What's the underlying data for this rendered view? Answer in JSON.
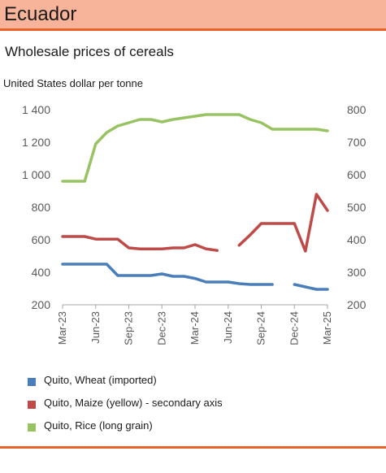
{
  "header": {
    "title": "Ecuador",
    "accent_color": "#e8632a",
    "banner_color": "#f8b49a"
  },
  "chart_data": {
    "type": "line",
    "title": "Wholesale prices of cereals",
    "unit_label": "United States dollar per tonne",
    "x": [
      "Mar-23",
      "Apr-23",
      "May-23",
      "Jun-23",
      "Jul-23",
      "Aug-23",
      "Sep-23",
      "Oct-23",
      "Nov-23",
      "Dec-23",
      "Jan-24",
      "Feb-24",
      "Mar-24",
      "Apr-24",
      "May-24",
      "Jun-24",
      "Jul-24",
      "Aug-24",
      "Sep-24",
      "Oct-24",
      "Nov-24",
      "Dec-24",
      "Jan-25",
      "Feb-25",
      "Mar-25"
    ],
    "x_tick_labels": [
      "Mar-23",
      "Jun-23",
      "Sep-23",
      "Dec-23",
      "Mar-24",
      "Jun-24",
      "Sep-24",
      "Dec-24",
      "Mar-25"
    ],
    "ylim": [
      200,
      1400
    ],
    "y_ticks": [
      "1 400",
      "1 200",
      "1 000",
      "800",
      "600",
      "400",
      "200"
    ],
    "y2lim": [
      200,
      800
    ],
    "y2_ticks": [
      "800",
      "700",
      "600",
      "500",
      "400",
      "300",
      "200"
    ],
    "grid": false,
    "legend_position": "bottom",
    "series": [
      {
        "name": "Quito, Wheat (imported)",
        "axis": "left",
        "color": "#4a7ebb",
        "values": [
          450,
          450,
          450,
          450,
          450,
          380,
          380,
          380,
          380,
          390,
          375,
          375,
          362,
          340,
          340,
          340,
          330,
          325,
          325,
          325,
          null,
          325,
          310,
          295,
          295
        ]
      },
      {
        "name": "Quito, Maize (yellow) - secondary axis",
        "axis": "right",
        "color": "#be4b48",
        "values": [
          410,
          410,
          410,
          402,
          402,
          402,
          375,
          372,
          372,
          372,
          375,
          375,
          385,
          372,
          367,
          null,
          383,
          415,
          450,
          450,
          450,
          450,
          365,
          540,
          490
        ]
      },
      {
        "name": "Quito, Rice (long grain)",
        "axis": "left",
        "color": "#98c363",
        "values": [
          960,
          960,
          960,
          1190,
          1260,
          1300,
          1320,
          1340,
          1340,
          1325,
          1340,
          1350,
          1360,
          1370,
          1370,
          1370,
          1370,
          1340,
          1320,
          1280,
          1280,
          1280,
          1280,
          1280,
          1270
        ]
      }
    ]
  }
}
